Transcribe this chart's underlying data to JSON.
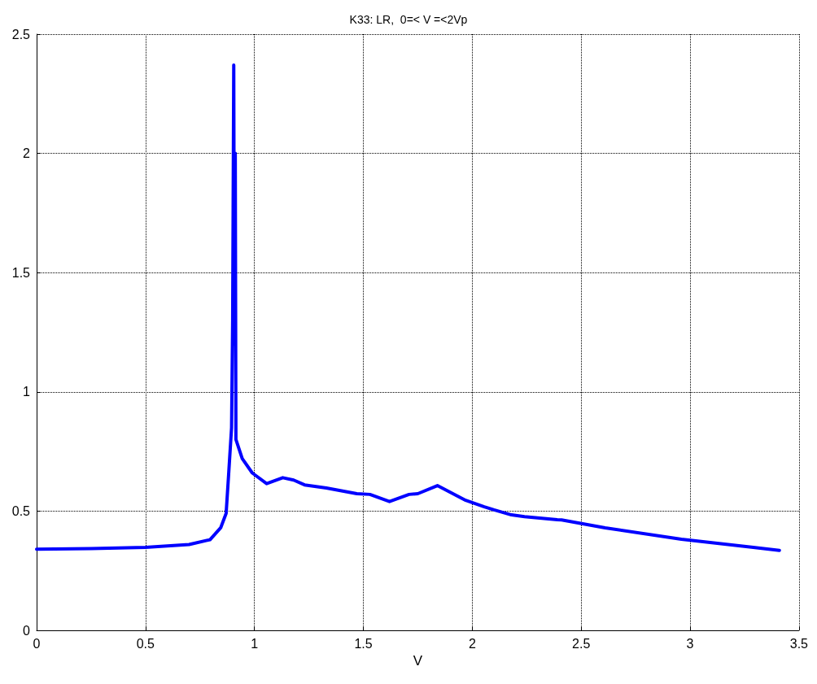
{
  "chart_data": {
    "type": "line",
    "title": "K33: LR,  0=< V =<2Vp",
    "xlabel": "V",
    "xlim": [
      0,
      3.5
    ],
    "xticks": [
      0,
      0.5,
      1,
      1.5,
      2,
      2.5,
      3,
      3.5
    ],
    "ylim": [
      0,
      2.5
    ],
    "yticks": [
      0,
      0.5,
      1,
      1.5,
      2,
      2.5
    ],
    "grid": true,
    "marker": "none",
    "line_style": "solid",
    "series": [
      {
        "color": "#0000ff",
        "x": [
          0,
          0.25,
          0.5,
          0.7,
          0.796,
          0.845,
          0.87,
          0.882,
          0.895,
          0.9,
          0.905,
          0.908,
          0.912,
          0.915,
          0.944,
          0.99,
          1.056,
          1.13,
          1.18,
          1.23,
          1.33,
          1.47,
          1.53,
          1.62,
          1.71,
          1.75,
          1.84,
          1.97,
          2.055,
          2.1,
          2.18,
          2.24,
          2.39,
          2.41,
          2.61,
          2.96,
          3.29,
          3.41
        ],
        "values": [
          0.34,
          0.343,
          0.348,
          0.36,
          0.38,
          0.43,
          0.49,
          0.66,
          0.85,
          1.3,
          2.37,
          1.2,
          2.0,
          0.8,
          0.72,
          0.66,
          0.615,
          0.64,
          0.63,
          0.61,
          0.597,
          0.573,
          0.57,
          0.54,
          0.57,
          0.573,
          0.607,
          0.545,
          0.518,
          0.505,
          0.484,
          0.477,
          0.464,
          0.463,
          0.43,
          0.382,
          0.348,
          0.335
        ]
      }
    ]
  }
}
